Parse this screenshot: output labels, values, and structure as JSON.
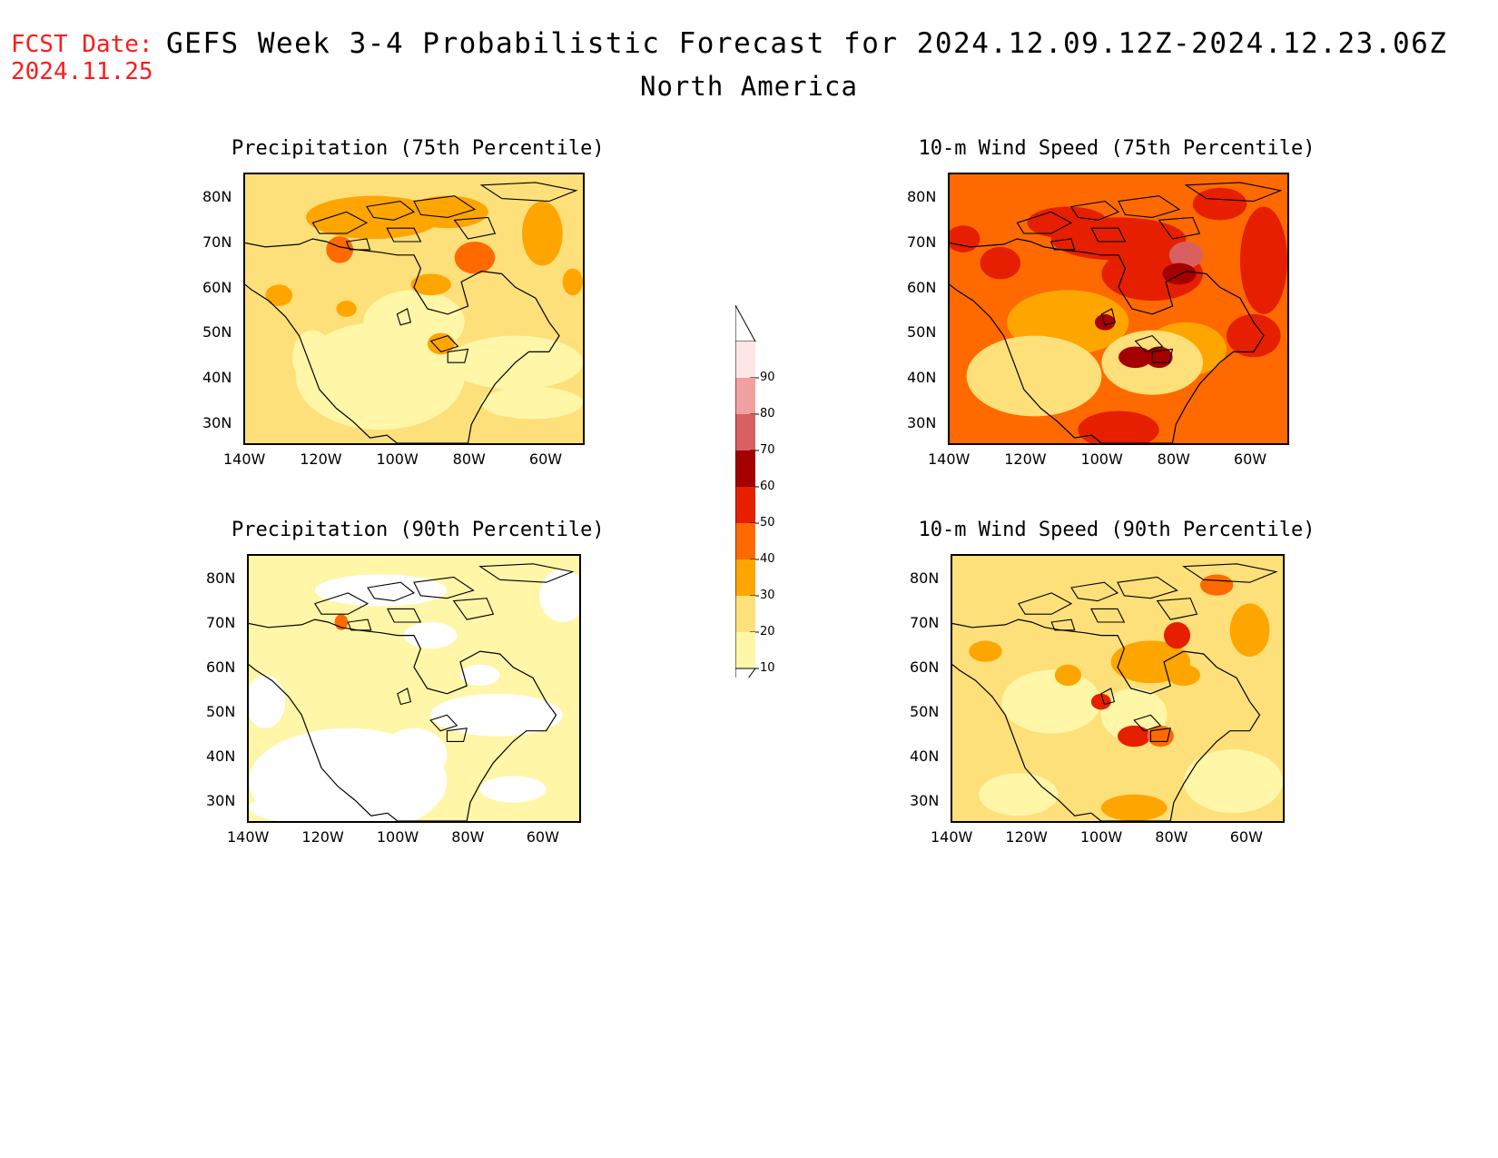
{
  "header": {
    "fcst_label": "FCST Date:",
    "fcst_date": "2024.11.25",
    "title": "GEFS Week 3-4 Probabilistic Forecast for 2024.12.09.12Z-2024.12.23.06Z",
    "region": "North America"
  },
  "panels": [
    {
      "id": "precip75",
      "title": "Precipitation (75th Percentile)",
      "background_level": 20
    },
    {
      "id": "wind75",
      "title": "10-m Wind Speed (75th Percentile)",
      "background_level": 40
    },
    {
      "id": "precip90",
      "title": "Precipitation (90th Percentile)",
      "background_level": 10
    },
    {
      "id": "wind90",
      "title": "10-m Wind Speed (90th Percentile)",
      "background_level": 20
    }
  ],
  "axes": {
    "lat_labels": [
      "80N",
      "70N",
      "60N",
      "50N",
      "40N",
      "30N"
    ],
    "lon_labels": [
      "140W",
      "120W",
      "100W",
      "80W",
      "60W"
    ]
  },
  "colorbar": {
    "levels": [
      "10",
      "20",
      "30",
      "40",
      "50",
      "60",
      "70",
      "80",
      "90"
    ],
    "colors": [
      "#fff6a8",
      "#fde07a",
      "#ffa500",
      "#ff6a00",
      "#e51f00",
      "#a50000",
      "#d86060",
      "#f0a0a0",
      "#ffe6e6"
    ]
  }
}
